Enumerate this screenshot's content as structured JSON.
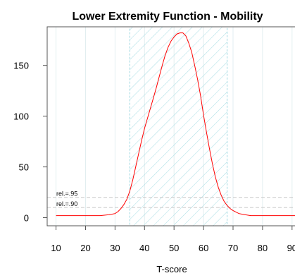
{
  "chart_data": {
    "type": "line",
    "title": "Lower Extremity Function  - Mobility",
    "xlabel": "T-score",
    "ylabel": "",
    "xlim": [
      7,
      91
    ],
    "ylim": [
      -8,
      188
    ],
    "xticks": [
      10,
      20,
      30,
      40,
      50,
      60,
      70,
      80,
      90
    ],
    "xtick_labels": [
      "10",
      "20",
      "30",
      "40",
      "50",
      "60",
      "70",
      "80",
      "90"
    ],
    "yticks": [
      0,
      50,
      100,
      150
    ],
    "ytick_labels": [
      "0",
      "50",
      "100",
      "150"
    ],
    "grid": "vertical",
    "series": [
      {
        "color": "#ff0000",
        "x": [
          10,
          20,
          25,
          28,
          30,
          31,
          32,
          33,
          34,
          35,
          36,
          37,
          38,
          39,
          40,
          41,
          42,
          43,
          44,
          45,
          46,
          47,
          48,
          49,
          50,
          51,
          52,
          53,
          54,
          55,
          56,
          57,
          58,
          59,
          60,
          61,
          62,
          63,
          64,
          65,
          66,
          67,
          68,
          69,
          70,
          72,
          74,
          76,
          78,
          80,
          85,
          91
        ],
        "y": [
          2,
          2,
          2,
          3,
          4,
          6,
          9,
          13,
          18,
          26,
          37,
          50,
          63,
          76,
          88,
          98,
          108,
          118,
          128,
          139,
          150,
          160,
          168,
          174,
          178,
          181,
          182,
          182,
          179,
          172,
          163,
          150,
          136,
          120,
          101,
          84,
          68,
          53,
          40,
          30,
          22,
          16,
          12,
          9,
          7,
          4,
          3,
          2,
          2,
          2,
          2,
          2
        ]
      }
    ],
    "reliability_band": {
      "x_start": 35,
      "x_end": 68,
      "color": "#9ed8e0"
    },
    "reference_lines": [
      {
        "label": "rel.=.95",
        "y": 20
      },
      {
        "label": "rel.=.90",
        "y": 10
      }
    ]
  }
}
